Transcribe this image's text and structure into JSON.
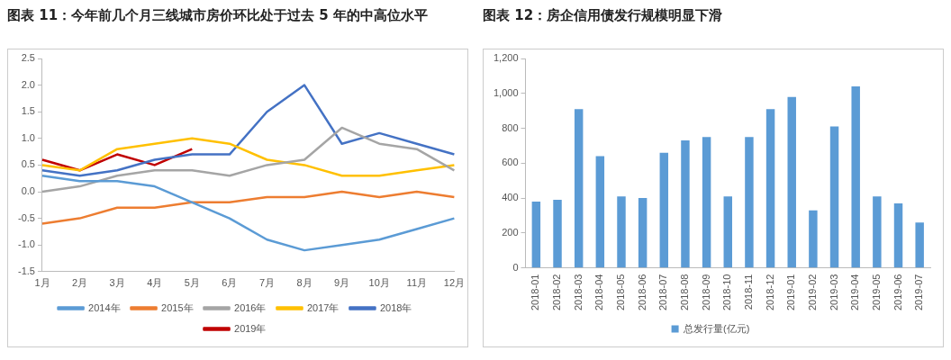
{
  "chart_data": [
    {
      "type": "line",
      "title": "图表 11：今年前几个月三线城市房价环比处于过去 5 年的中高位水平",
      "categories": [
        "1月",
        "2月",
        "3月",
        "4月",
        "5月",
        "6月",
        "7月",
        "8月",
        "9月",
        "10月",
        "11月",
        "12月"
      ],
      "series": [
        {
          "name": "2014年",
          "color": "#5b9bd5",
          "values": [
            0.3,
            0.2,
            0.2,
            0.1,
            -0.2,
            -0.5,
            -0.9,
            -1.1,
            -1.0,
            -0.9,
            -0.7,
            -0.5
          ]
        },
        {
          "name": "2015年",
          "color": "#ed7d31",
          "values": [
            -0.6,
            -0.5,
            -0.3,
            -0.3,
            -0.2,
            -0.2,
            -0.1,
            -0.1,
            0.0,
            -0.1,
            0.0,
            -0.1
          ]
        },
        {
          "name": "2016年",
          "color": "#a5a5a5",
          "values": [
            0.0,
            0.1,
            0.3,
            0.4,
            0.4,
            0.3,
            0.5,
            0.6,
            1.2,
            0.9,
            0.8,
            0.4
          ]
        },
        {
          "name": "2017年",
          "color": "#ffc000",
          "values": [
            0.5,
            0.4,
            0.8,
            0.9,
            1.0,
            0.9,
            0.6,
            0.5,
            0.3,
            0.3,
            0.4,
            0.5
          ]
        },
        {
          "name": "2018年",
          "color": "#4472c4",
          "values": [
            0.4,
            0.3,
            0.4,
            0.6,
            0.7,
            0.7,
            1.5,
            2.0,
            0.9,
            1.1,
            0.9,
            0.7
          ]
        },
        {
          "name": "2019年",
          "color": "#c00000",
          "values": [
            0.6,
            0.4,
            0.7,
            0.5,
            0.8,
            null,
            null,
            null,
            null,
            null,
            null,
            null
          ]
        }
      ],
      "ylim": [
        -1.5,
        2.5
      ],
      "yticks": [
        {
          "value": -1.5,
          "label": "-1.5"
        },
        {
          "value": -1,
          "label": "-1.0"
        },
        {
          "value": -0.5,
          "label": "-0.5"
        },
        {
          "value": 0,
          "label": "0.0"
        },
        {
          "value": 0.5,
          "label": "0.5"
        },
        {
          "value": 1,
          "label": "1.0"
        },
        {
          "value": 1.5,
          "label": "1.5"
        },
        {
          "value": 2,
          "label": "2.0"
        },
        {
          "value": 2.5,
          "label": "2.5"
        }
      ],
      "legend": "bottom",
      "marker": "none",
      "grid": false
    },
    {
      "type": "bar",
      "title": "图表 12：房企信用债发行规模明显下滑",
      "categories": [
        "2018-01",
        "2018-02",
        "2018-03",
        "2018-04",
        "2018-05",
        "2018-06",
        "2018-07",
        "2018-08",
        "2018-09",
        "2018-10",
        "2018-11",
        "2018-12",
        "2019-01",
        "2019-02",
        "2019-03",
        "2019-04",
        "2019-05",
        "2019-06",
        "2019-07"
      ],
      "series": [
        {
          "name": "总发行量(亿元)",
          "color": "#5b9bd5",
          "values": [
            380,
            390,
            910,
            640,
            410,
            400,
            660,
            730,
            750,
            410,
            750,
            910,
            980,
            330,
            810,
            1040,
            410,
            370,
            260
          ]
        }
      ],
      "ylim": [
        0,
        1200
      ],
      "yticks": [
        0,
        200,
        400,
        600,
        800,
        {
          "value": 1000,
          "label": "1,000"
        },
        {
          "value": 1200,
          "label": "1,200"
        }
      ],
      "legend": "bottom",
      "grid": false
    }
  ]
}
